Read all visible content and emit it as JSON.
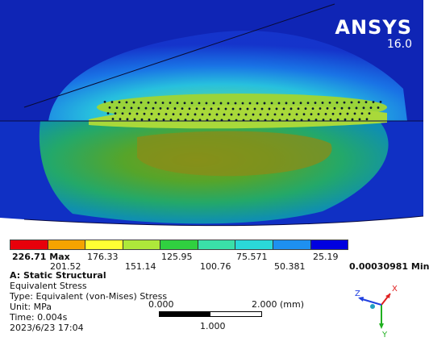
{
  "app": {
    "brand": "ANSYS",
    "version": "16.0"
  },
  "legend": {
    "max_label": "226.71 Max",
    "min_label": "0.00030981 Min",
    "upper_values": [
      "176.33",
      "125.95",
      "75.571",
      "25.19"
    ],
    "lower_values": [
      "201.52",
      "151.14",
      "100.76",
      "50.381"
    ],
    "colors": [
      "#e8000b",
      "#f5a300",
      "#ffff33",
      "#aee83a",
      "#30d040",
      "#3ae0a8",
      "#2ad8d8",
      "#1e90f0",
      "#0000e0"
    ]
  },
  "analysis": {
    "name": "A: Static Structural",
    "result": "Equivalent Stress",
    "type": "Type: Equivalent (von-Mises) Stress",
    "unit": "Unit: MPa",
    "time": "Time: 0.004s",
    "timestamp": "2023/6/23 17:04"
  },
  "scale_bar": {
    "start": "0.000",
    "end": "2.000 (mm)",
    "mid": "1.000"
  },
  "triad": {
    "x_label": "X",
    "y_label": "Y",
    "z_label": "Z",
    "x_color": "#e02020",
    "y_color": "#20b020",
    "z_color": "#2040e0"
  },
  "model": {
    "background_color": "#0a1fb8",
    "body_color": "#1033c8"
  }
}
